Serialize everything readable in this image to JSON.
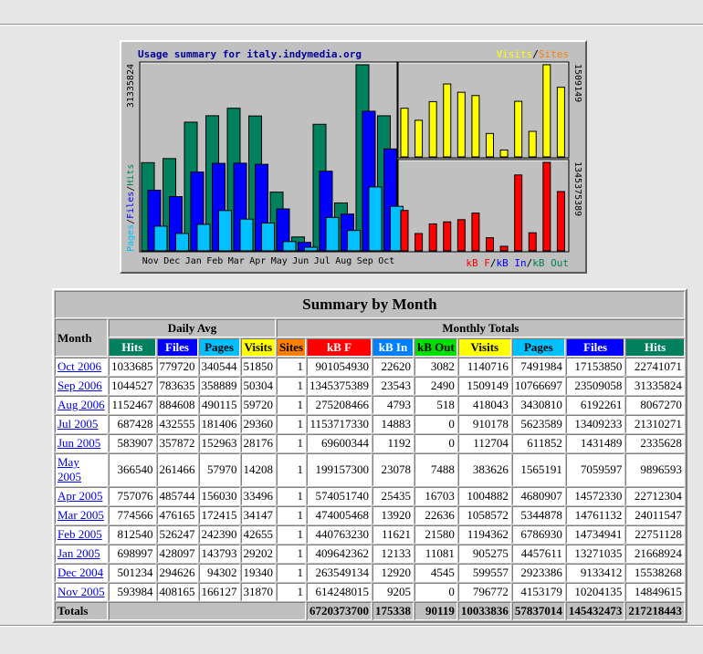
{
  "colors": {
    "hits": "#00805c",
    "files": "#0000ff",
    "pages": "#00c0ff",
    "visits": "#ffff00",
    "sites": "#ff8000",
    "kbf": "#ff0000",
    "kbin": "#0080ff",
    "kbout": "#00e000"
  },
  "chart_data": {
    "type": "bar",
    "title": "Usage summary for italy.indymedia.org",
    "categories": [
      "Nov",
      "Dec",
      "Jan",
      "Feb",
      "Mar",
      "Apr",
      "May",
      "Jun",
      "Jul",
      "Aug",
      "Sep",
      "Oct"
    ],
    "left_panel": {
      "axis_label_max": "31335824",
      "axis_title": [
        "Pages",
        "/",
        "Files",
        "/",
        "Hits"
      ],
      "series": [
        {
          "name": "Hits",
          "color": "#00805c",
          "values": [
            14849615,
            15538268,
            21668924,
            22751128,
            24011547,
            22712304,
            9896593,
            2335628,
            21310271,
            8067270,
            31335824,
            22741071
          ]
        },
        {
          "name": "Files",
          "color": "#0000ff",
          "values": [
            10204135,
            9133412,
            13271035,
            14734941,
            14761132,
            14572330,
            7059597,
            1431489,
            13409233,
            6192261,
            23509058,
            17153850
          ]
        },
        {
          "name": "Pages",
          "color": "#00c0ff",
          "values": [
            4153179,
            2923386,
            4457611,
            6786930,
            5344878,
            4680907,
            1565191,
            611852,
            5623589,
            3430810,
            10766697,
            7491984
          ]
        }
      ]
    },
    "top_right_panel": {
      "axis_label_max": "1509149",
      "legend": [
        "Visits",
        "/",
        "Sites"
      ],
      "series": [
        {
          "name": "Visits",
          "color": "#ffff00",
          "values": [
            796772,
            599557,
            905275,
            1194362,
            1058572,
            1004882,
            383626,
            112704,
            910178,
            418043,
            1509149,
            1140716
          ]
        }
      ]
    },
    "bottom_right_panel": {
      "axis_label_max": "1345375389",
      "legend": [
        "kB F",
        "/",
        "kB In",
        "/",
        "kB Out"
      ],
      "series": [
        {
          "name": "kB F",
          "color": "#ff0000",
          "values": [
            614248015,
            263549134,
            409642362,
            440763230,
            474005468,
            574051740,
            199157300,
            69600344,
            1153717330,
            275208466,
            1345375389,
            901054930
          ]
        }
      ]
    }
  },
  "table": {
    "title": "Summary by Month",
    "month_header": "Month",
    "daily_avg_header": "Daily Avg",
    "monthly_totals_header": "Monthly Totals",
    "daily_cols": [
      "Hits",
      "Files",
      "Pages",
      "Visits"
    ],
    "monthly_cols": [
      "Sites",
      "kB F",
      "kB In",
      "kB Out",
      "Visits",
      "Pages",
      "Files",
      "Hits"
    ],
    "rows": [
      {
        "month": "Oct 2006",
        "d_hits": "1033685",
        "d_files": "779720",
        "d_pages": "340544",
        "d_visits": "51850",
        "sites": "1",
        "kbf": "901054930",
        "kbin": "22620",
        "kbout": "3082",
        "visits": "1140716",
        "pages": "7491984",
        "files": "17153850",
        "hits": "22741071"
      },
      {
        "month": "Sep 2006",
        "d_hits": "1044527",
        "d_files": "783635",
        "d_pages": "358889",
        "d_visits": "50304",
        "sites": "1",
        "kbf": "1345375389",
        "kbin": "23543",
        "kbout": "2490",
        "visits": "1509149",
        "pages": "10766697",
        "files": "23509058",
        "hits": "31335824"
      },
      {
        "month": "Aug 2006",
        "d_hits": "1152467",
        "d_files": "884608",
        "d_pages": "490115",
        "d_visits": "59720",
        "sites": "1",
        "kbf": "275208466",
        "kbin": "4793",
        "kbout": "518",
        "visits": "418043",
        "pages": "3430810",
        "files": "6192261",
        "hits": "8067270"
      },
      {
        "month": "Jul 2005",
        "d_hits": "687428",
        "d_files": "432555",
        "d_pages": "181406",
        "d_visits": "29360",
        "sites": "1",
        "kbf": "1153717330",
        "kbin": "14883",
        "kbout": "0",
        "visits": "910178",
        "pages": "5623589",
        "files": "13409233",
        "hits": "21310271"
      },
      {
        "month": "Jun 2005",
        "d_hits": "583907",
        "d_files": "357872",
        "d_pages": "152963",
        "d_visits": "28176",
        "sites": "1",
        "kbf": "69600344",
        "kbin": "1192",
        "kbout": "0",
        "visits": "112704",
        "pages": "611852",
        "files": "1431489",
        "hits": "2335628"
      },
      {
        "month": "May 2005",
        "d_hits": "366540",
        "d_files": "261466",
        "d_pages": "57970",
        "d_visits": "14208",
        "sites": "1",
        "kbf": "199157300",
        "kbin": "23078",
        "kbout": "7488",
        "visits": "383626",
        "pages": "1565191",
        "files": "7059597",
        "hits": "9896593"
      },
      {
        "month": "Apr 2005",
        "d_hits": "757076",
        "d_files": "485744",
        "d_pages": "156030",
        "d_visits": "33496",
        "sites": "1",
        "kbf": "574051740",
        "kbin": "25435",
        "kbout": "16703",
        "visits": "1004882",
        "pages": "4680907",
        "files": "14572330",
        "hits": "22712304"
      },
      {
        "month": "Mar 2005",
        "d_hits": "774566",
        "d_files": "476165",
        "d_pages": "172415",
        "d_visits": "34147",
        "sites": "1",
        "kbf": "474005468",
        "kbin": "13920",
        "kbout": "22636",
        "visits": "1058572",
        "pages": "5344878",
        "files": "14761132",
        "hits": "24011547"
      },
      {
        "month": "Feb 2005",
        "d_hits": "812540",
        "d_files": "526247",
        "d_pages": "242390",
        "d_visits": "42655",
        "sites": "1",
        "kbf": "440763230",
        "kbin": "11621",
        "kbout": "21580",
        "visits": "1194362",
        "pages": "6786930",
        "files": "14734941",
        "hits": "22751128"
      },
      {
        "month": "Jan 2005",
        "d_hits": "698997",
        "d_files": "428097",
        "d_pages": "143793",
        "d_visits": "29202",
        "sites": "1",
        "kbf": "409642362",
        "kbin": "12133",
        "kbout": "11081",
        "visits": "905275",
        "pages": "4457611",
        "files": "13271035",
        "hits": "21668924"
      },
      {
        "month": "Dec 2004",
        "d_hits": "501234",
        "d_files": "294626",
        "d_pages": "94302",
        "d_visits": "19340",
        "sites": "1",
        "kbf": "263549134",
        "kbin": "12920",
        "kbout": "4545",
        "visits": "599557",
        "pages": "2923386",
        "files": "9133412",
        "hits": "15538268"
      },
      {
        "month": "Nov 2005",
        "d_hits": "593984",
        "d_files": "408165",
        "d_pages": "166127",
        "d_visits": "31870",
        "sites": "1",
        "kbf": "614248015",
        "kbin": "9205",
        "kbout": "0",
        "visits": "796772",
        "pages": "4153179",
        "files": "10204135",
        "hits": "14849615"
      }
    ],
    "totals": {
      "label": "Totals",
      "kbf": "6720373700",
      "kbin": "175338",
      "kbout": "90119",
      "visits": "10033836",
      "pages": "57837014",
      "files": "145432473",
      "hits": "217218443"
    }
  }
}
